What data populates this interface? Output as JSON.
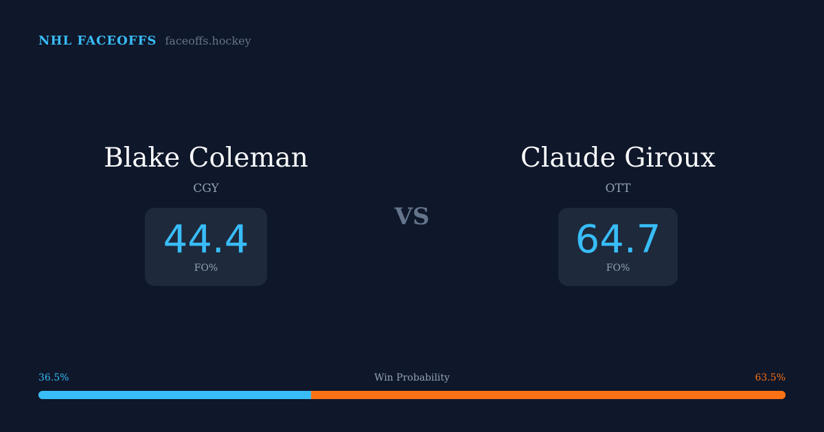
{
  "brand": {
    "name": "NHL FACEOFFS",
    "site": "faceoffs.hockey"
  },
  "players": [
    {
      "name": "Blake Coleman",
      "team": "CGY",
      "fo_pct": "44.4",
      "fo_label": "FO%"
    },
    {
      "name": "Claude Giroux",
      "team": "OTT",
      "fo_pct": "64.7",
      "fo_label": "FO%"
    }
  ],
  "vs": "VS",
  "win_probability": {
    "label": "Win Probability",
    "left": "36.5%",
    "right": "63.5%",
    "left_value": 36.5,
    "right_value": 63.5
  },
  "colors": {
    "background": "#0f172a",
    "card": "#1e293b",
    "accent_blue": "#38bdf8",
    "accent_orange": "#f97316"
  }
}
